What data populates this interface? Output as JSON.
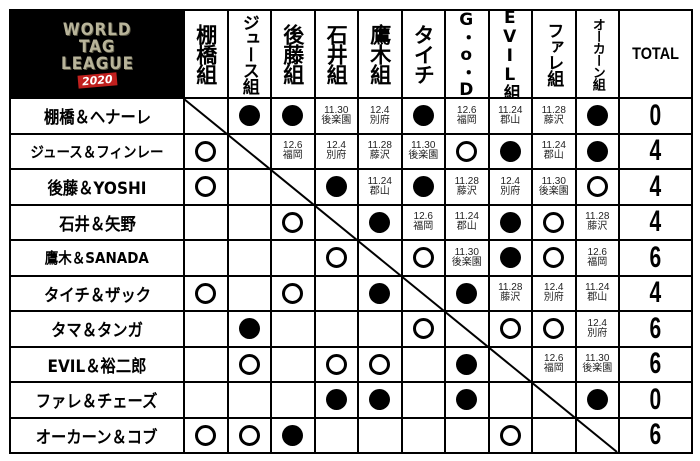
{
  "logo": {
    "lines": [
      "WORLD",
      "TAG",
      "LEAGUE"
    ],
    "year": "2020"
  },
  "columns": [
    "棚橋組",
    "ジュース組",
    "後藤組",
    "石井組",
    "鷹木組",
    "タイチ",
    "G・o・D",
    "EVIL組",
    "ファレ組",
    "オーカーン組"
  ],
  "total_label": "TOTAL",
  "legend_marks": {
    "win": "○",
    "loss": "●"
  },
  "rows": [
    {
      "team": "棚橋＆ヘナーレ",
      "total": "0",
      "cells": [
        "X",
        "●",
        "●",
        "11.30 後楽園",
        "12.4 別府",
        "●",
        "12.6 福岡",
        "11.24 郡山",
        "11.28 藤沢",
        "●"
      ]
    },
    {
      "team": "ジュース＆フィンレー",
      "total": "4",
      "cells": [
        "○",
        "X",
        "12.6 福岡",
        "12.4 別府",
        "11.28 藤沢",
        "11.30 後楽園",
        "○",
        "●",
        "11.24 郡山",
        "●"
      ]
    },
    {
      "team": "後藤＆YOSHI",
      "total": "4",
      "cells": [
        "○",
        "",
        "X",
        "●",
        "11.24 郡山",
        "●",
        "11.28 藤沢",
        "12.4 別府",
        "11.30 後楽園",
        "○"
      ]
    },
    {
      "team": "石井＆矢野",
      "total": "4",
      "cells": [
        "",
        "",
        "○",
        "X",
        "●",
        "12.6 福岡",
        "11.24 郡山",
        "●",
        "○",
        "11.28 藤沢"
      ]
    },
    {
      "team": "鷹木＆SANADA",
      "total": "6",
      "cells": [
        "",
        "",
        "",
        "○",
        "X",
        "○",
        "11.30 後楽園",
        "●",
        "○",
        "12.6 福岡"
      ]
    },
    {
      "team": "タイチ＆ザック",
      "total": "4",
      "cells": [
        "○",
        "",
        "○",
        "",
        "●",
        "X",
        "●",
        "11.28 藤沢",
        "12.4 別府",
        "11.24 郡山"
      ]
    },
    {
      "team": "タマ＆タンガ",
      "total": "6",
      "cells": [
        "",
        "●",
        "",
        "",
        "",
        "○",
        "X",
        "○",
        "○",
        "12.4 別府"
      ]
    },
    {
      "team": "EVIL＆裕二郎",
      "total": "6",
      "cells": [
        "",
        "○",
        "",
        "○",
        "○",
        "",
        "●",
        "X",
        "12.6 福岡",
        "11.30 後楽園"
      ]
    },
    {
      "team": "ファレ＆チェーズ",
      "total": "0",
      "cells": [
        "",
        "",
        "",
        "●",
        "●",
        "",
        "●",
        "",
        "X",
        "●"
      ]
    },
    {
      "team": "オーカーン＆コブ",
      "total": "6",
      "cells": [
        "○",
        "○",
        "●",
        "",
        "",
        "",
        "",
        "○",
        "",
        "X"
      ]
    }
  ]
}
